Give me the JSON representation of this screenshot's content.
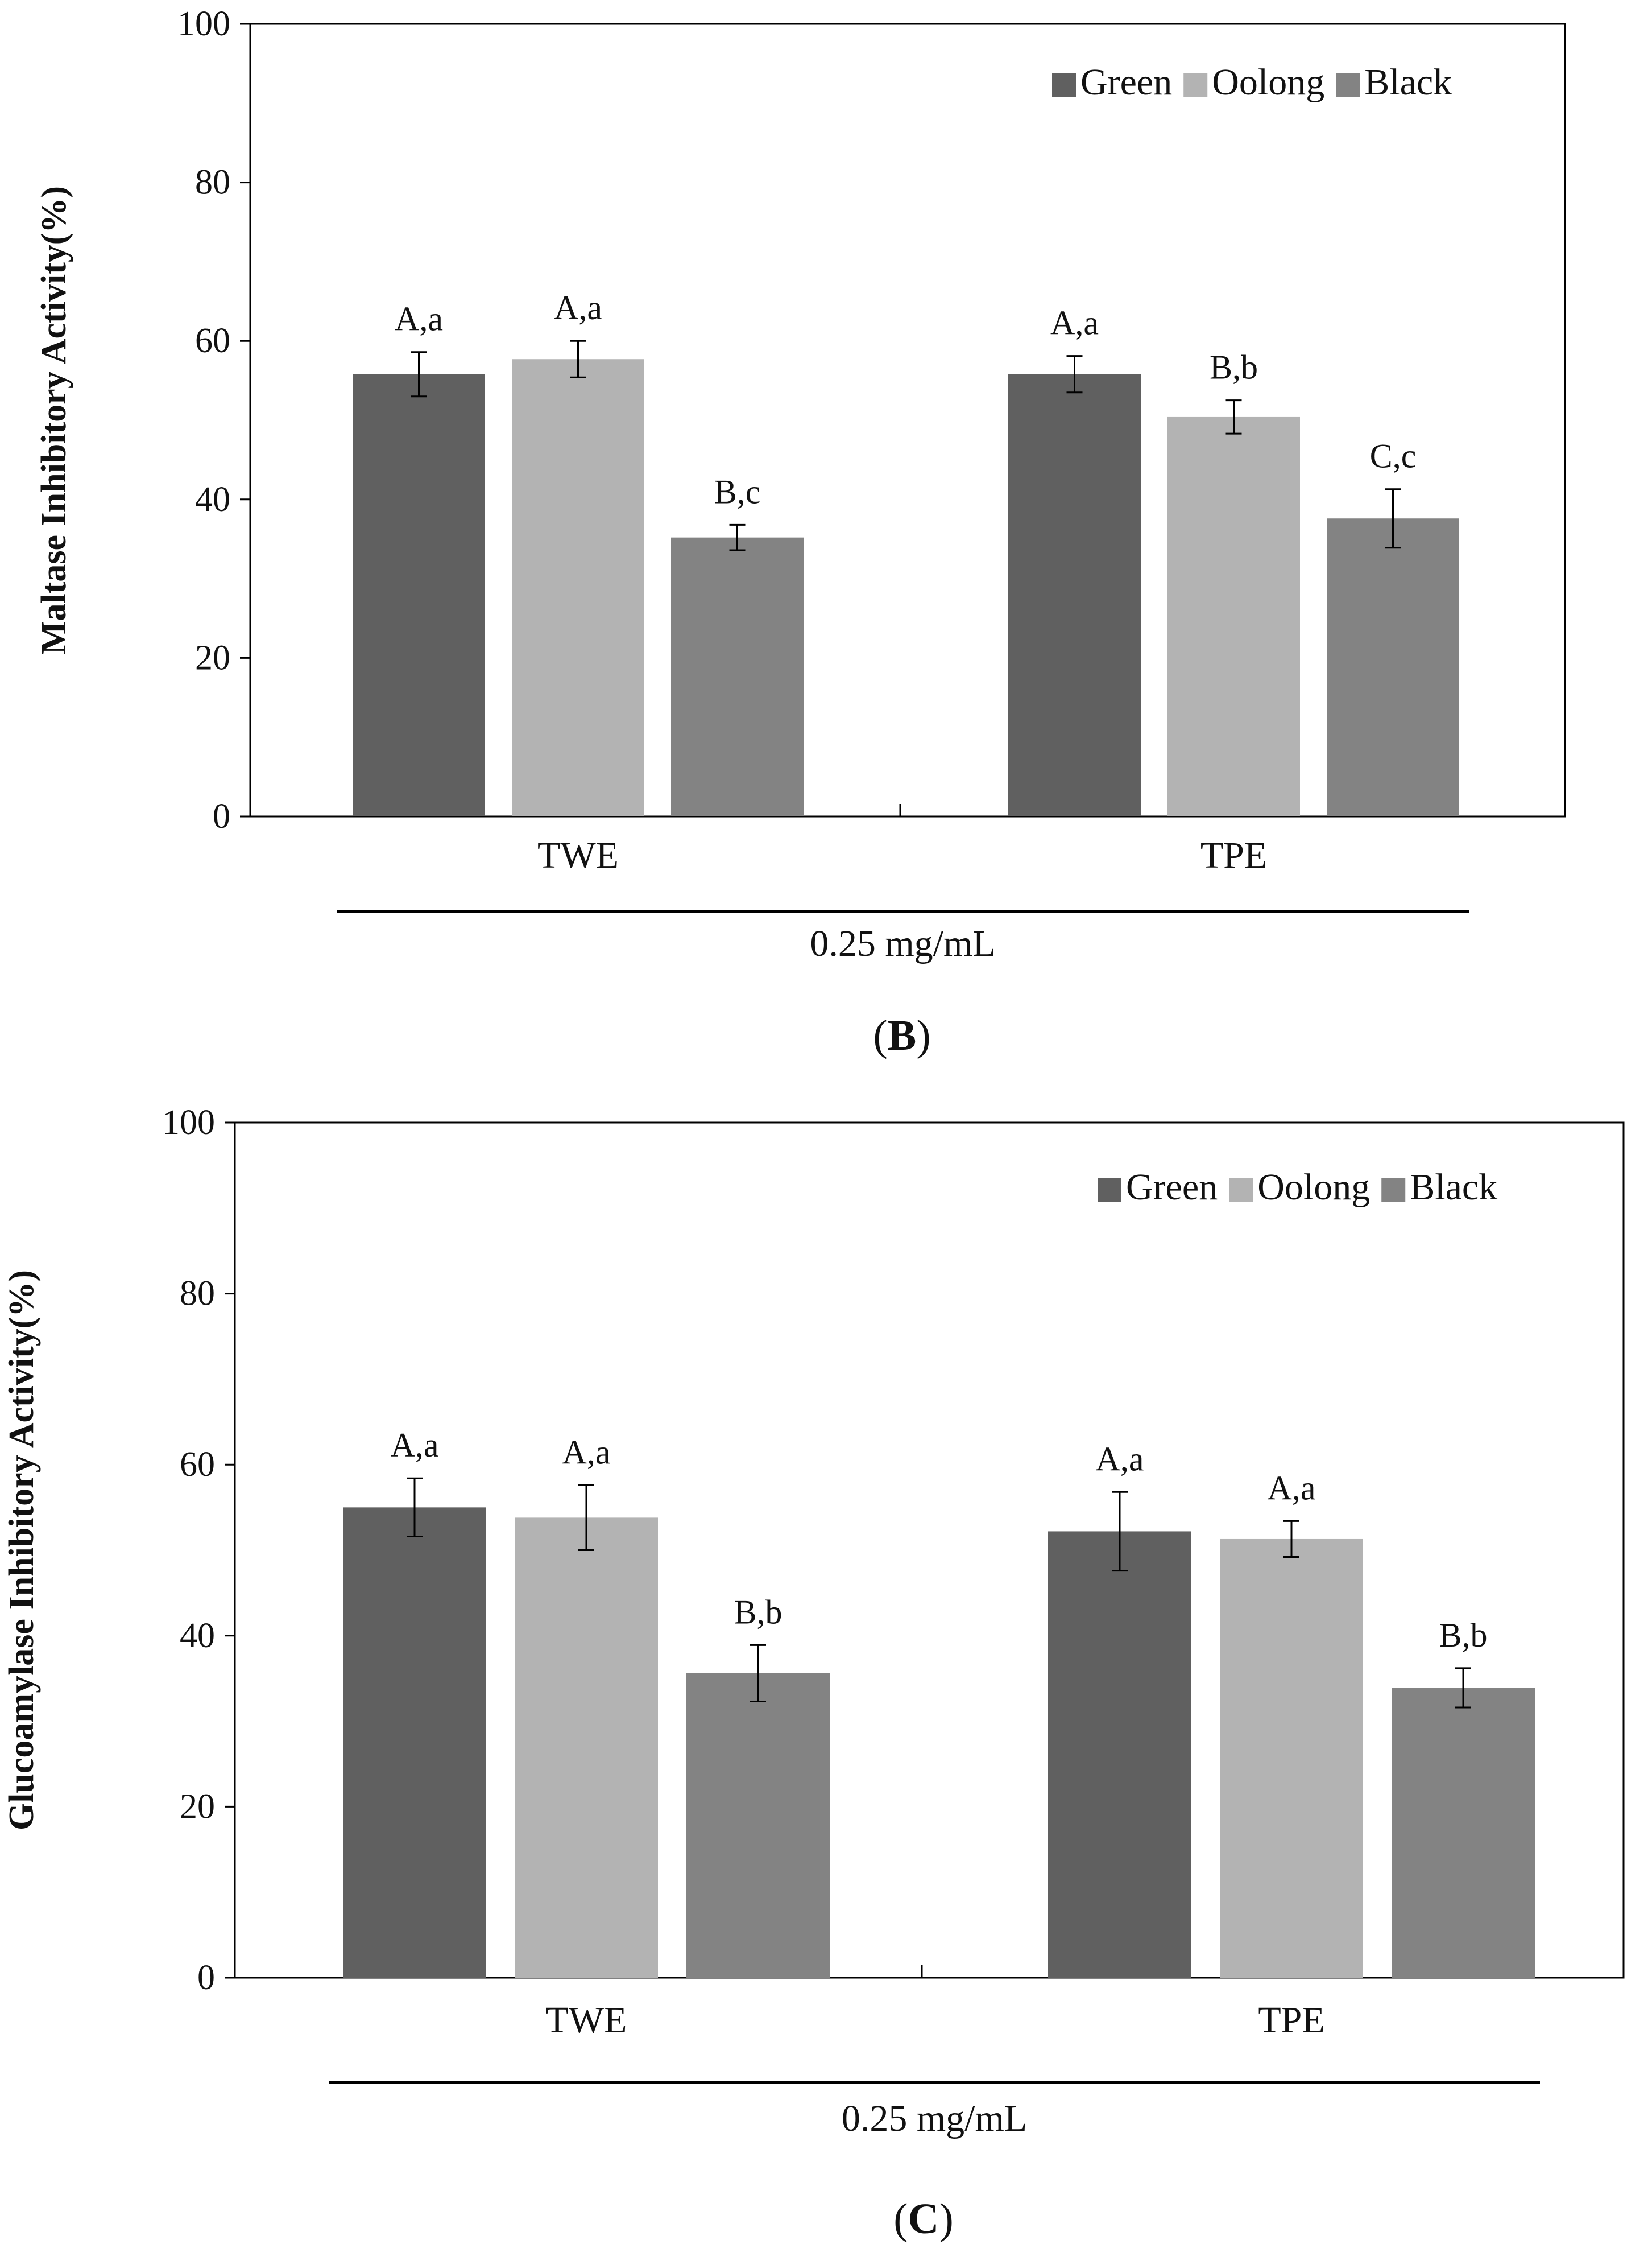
{
  "colors": {
    "Green": "#606060",
    "Oolong": "#b3b3b3",
    "Black": "#838383",
    "axis": "#000000"
  },
  "chart_data": [
    {
      "type": "bar",
      "categories": [
        "TWE",
        "TPE"
      ],
      "series": [
        {
          "name": "Green",
          "values": [
            55.8,
            55.8
          ],
          "errors": [
            2.8,
            2.3
          ],
          "labels": [
            "A,a",
            "A,a"
          ]
        },
        {
          "name": "Oolong",
          "values": [
            57.7,
            50.4
          ],
          "errors": [
            2.3,
            2.1
          ],
          "labels": [
            "A,a",
            "B,b"
          ]
        },
        {
          "name": "Black",
          "values": [
            35.2,
            37.6
          ],
          "errors": [
            1.6,
            3.7
          ],
          "labels": [
            "B,c",
            "C,c"
          ]
        }
      ],
      "title": "",
      "xlabel": "0.25 mg/mL",
      "ylabel": "Maltase Inhibitory Activity(%)",
      "ylim": [
        0,
        100
      ],
      "yticks": [
        0,
        20,
        40,
        60,
        80,
        100
      ],
      "legend": [
        "Green",
        "Oolong",
        "Black"
      ],
      "legend_position": "top-right",
      "panel_label": "B",
      "grid": false
    },
    {
      "type": "bar",
      "categories": [
        "TWE",
        "TPE"
      ],
      "series": [
        {
          "name": "Green",
          "values": [
            55.0,
            52.2
          ],
          "errors": [
            3.4,
            4.6
          ],
          "labels": [
            "A,a",
            "A,a"
          ]
        },
        {
          "name": "Oolong",
          "values": [
            53.8,
            51.3
          ],
          "errors": [
            3.8,
            2.1
          ],
          "labels": [
            "A,a",
            "A,a"
          ]
        },
        {
          "name": "Black",
          "values": [
            35.6,
            33.9
          ],
          "errors": [
            3.3,
            2.3
          ],
          "labels": [
            "B,b",
            "B,b"
          ]
        }
      ],
      "title": "",
      "xlabel": "0.25 mg/mL",
      "ylabel": "Glucoamylase Inhibitory Activity(%)",
      "ylim": [
        0,
        100
      ],
      "yticks": [
        0,
        20,
        40,
        60,
        80,
        100
      ],
      "legend": [
        "Green",
        "Oolong",
        "Black"
      ],
      "legend_position": "top-right",
      "panel_label": "C",
      "grid": false
    }
  ]
}
